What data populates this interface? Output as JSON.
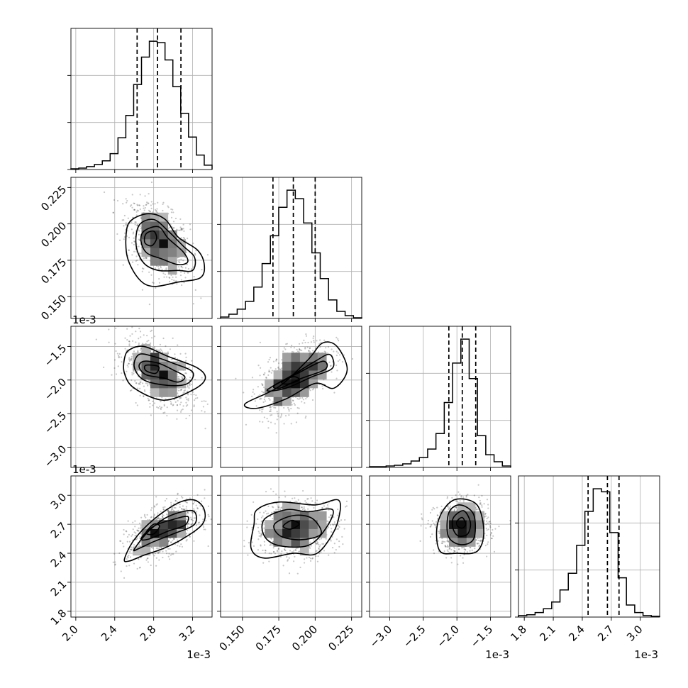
{
  "chart_data": {
    "type": "corner",
    "parameters": [
      {
        "range": [
          1.95,
          3.4
        ],
        "ticks": [
          2.0,
          2.4,
          2.8,
          3.2
        ],
        "tick_labels": [
          "2.0",
          "2.4",
          "2.8",
          "3.2"
        ],
        "offset_label": "1e-3",
        "quantiles": [
          2.63,
          2.84,
          3.08
        ]
      },
      {
        "range": [
          0.135,
          0.232
        ],
        "ticks": [
          0.15,
          0.175,
          0.2,
          0.225
        ],
        "tick_labels": [
          "0.150",
          "0.175",
          "0.200",
          "0.225"
        ],
        "offset_label": "",
        "quantiles": [
          0.171,
          0.185,
          0.2
        ]
      },
      {
        "range": [
          -3.3,
          -1.2
        ],
        "ticks": [
          -3.0,
          -2.5,
          -2.0,
          -1.5
        ],
        "tick_labels": [
          "−3.0",
          "−2.5",
          "−2.0",
          "−1.5"
        ],
        "offset_label": "1e-3",
        "quantiles": [
          -2.12,
          -1.92,
          -1.72
        ]
      },
      {
        "range": [
          1.74,
          3.2
        ],
        "ticks": [
          1.8,
          2.1,
          2.4,
          2.7,
          3.0
        ],
        "tick_labels": [
          "1.8",
          "2.1",
          "2.4",
          "2.7",
          "3.0"
        ],
        "offset_label": "1e-3",
        "quantiles": [
          2.46,
          2.66,
          2.78
        ]
      }
    ],
    "histograms": [
      {
        "counts": [
          1,
          2,
          4,
          7,
          12,
          22,
          44,
          75,
          118,
          156,
          178,
          176,
          152,
          115,
          78,
          45,
          20,
          6
        ]
      },
      {
        "counts": [
          2,
          6,
          13,
          24,
          44,
          77,
          116,
          156,
          180,
          168,
          134,
          92,
          56,
          26,
          10,
          4,
          1
        ]
      },
      {
        "counts": [
          1,
          1,
          2,
          3,
          5,
          9,
          14,
          26,
          48,
          92,
          148,
          182,
          126,
          45,
          18,
          8,
          2
        ]
      },
      {
        "counts": [
          2,
          3,
          6,
          11,
          20,
          36,
          58,
          95,
          140,
          170,
          166,
          112,
          52,
          16,
          6,
          2,
          1
        ]
      }
    ],
    "pairs": [
      {
        "x_param": 0,
        "y_param": 1,
        "mean": [
          2.85,
          0.188
        ],
        "sd": [
          0.16,
          0.013
        ],
        "corr": -0.45,
        "contours": [
          [
            [
              2.58,
              0.203
            ],
            [
              2.75,
              0.207
            ],
            [
              2.92,
              0.203
            ],
            [
              3.05,
              0.191
            ],
            [
              3.25,
              0.182
            ],
            [
              3.32,
              0.172
            ],
            [
              3.28,
              0.163
            ],
            [
              3.05,
              0.16
            ],
            [
              2.8,
              0.157
            ],
            [
              2.65,
              0.162
            ],
            [
              2.53,
              0.177
            ],
            [
              2.52,
              0.195
            ]
          ],
          [
            [
              2.65,
              0.199
            ],
            [
              2.8,
              0.203
            ],
            [
              2.95,
              0.195
            ],
            [
              3.1,
              0.185
            ],
            [
              3.22,
              0.177
            ],
            [
              3.2,
              0.168
            ],
            [
              3.05,
              0.168
            ],
            [
              2.85,
              0.168
            ],
            [
              2.7,
              0.173
            ],
            [
              2.62,
              0.185
            ]
          ],
          [
            [
              2.7,
              0.195
            ],
            [
              2.85,
              0.198
            ],
            [
              2.95,
              0.19
            ],
            [
              3.1,
              0.181
            ],
            [
              3.15,
              0.174
            ],
            [
              3.05,
              0.172
            ],
            [
              2.88,
              0.176
            ],
            [
              2.73,
              0.18
            ],
            [
              2.67,
              0.188
            ]
          ],
          [
            [
              2.72,
              0.193
            ],
            [
              2.8,
              0.195
            ],
            [
              2.83,
              0.19
            ],
            [
              2.78,
              0.185
            ],
            [
              2.71,
              0.187
            ]
          ]
        ]
      },
      {
        "x_param": 0,
        "y_param": 2,
        "mean": [
          2.85,
          -1.9
        ],
        "sd": [
          0.17,
          0.25
        ],
        "corr": -0.5,
        "contours": [
          [
            [
              2.55,
              -1.55
            ],
            [
              2.7,
              -1.5
            ],
            [
              2.95,
              -1.65
            ],
            [
              3.25,
              -1.82
            ],
            [
              3.33,
              -1.98
            ],
            [
              3.2,
              -2.15
            ],
            [
              2.9,
              -2.3
            ],
            [
              2.6,
              -2.12
            ],
            [
              2.5,
              -1.9
            ],
            [
              2.5,
              -1.68
            ]
          ],
          [
            [
              2.65,
              -1.62
            ],
            [
              2.8,
              -1.65
            ],
            [
              3.0,
              -1.75
            ],
            [
              3.2,
              -1.88
            ],
            [
              3.15,
              -2.05
            ],
            [
              2.95,
              -2.08
            ],
            [
              2.7,
              -2.0
            ],
            [
              2.6,
              -1.8
            ]
          ],
          [
            [
              2.7,
              -1.72
            ],
            [
              2.85,
              -1.75
            ],
            [
              3.0,
              -1.85
            ],
            [
              3.12,
              -1.95
            ],
            [
              3.05,
              -2.03
            ],
            [
              2.9,
              -1.97
            ],
            [
              2.72,
              -1.92
            ],
            [
              2.65,
              -1.8
            ]
          ],
          [
            [
              2.72,
              -1.78
            ],
            [
              2.85,
              -1.8
            ],
            [
              2.82,
              -1.9
            ],
            [
              2.72,
              -1.86
            ]
          ]
        ]
      },
      {
        "x_param": 1,
        "y_param": 2,
        "mean": [
          0.186,
          -1.95
        ],
        "sd": [
          0.012,
          0.27
        ],
        "corr": 0.55,
        "contours": [
          [
            [
              0.152,
              -2.35
            ],
            [
              0.175,
              -2.1
            ],
            [
              0.195,
              -1.7
            ],
            [
              0.205,
              -1.45
            ],
            [
              0.215,
              -1.5
            ],
            [
              0.222,
              -1.85
            ],
            [
              0.213,
              -2.12
            ],
            [
              0.2,
              -2.05
            ],
            [
              0.18,
              -2.28
            ],
            [
              0.16,
              -2.42
            ]
          ],
          [
            [
              0.167,
              -2.15
            ],
            [
              0.185,
              -1.92
            ],
            [
              0.2,
              -1.72
            ],
            [
              0.21,
              -1.62
            ],
            [
              0.212,
              -1.82
            ],
            [
              0.198,
              -1.95
            ],
            [
              0.18,
              -2.12
            ]
          ],
          [
            [
              0.172,
              -2.08
            ],
            [
              0.188,
              -1.9
            ],
            [
              0.205,
              -1.72
            ],
            [
              0.207,
              -1.84
            ],
            [
              0.19,
              -1.98
            ],
            [
              0.176,
              -2.12
            ]
          ],
          [
            [
              0.177,
              -2.03
            ],
            [
              0.185,
              -1.95
            ],
            [
              0.189,
              -2.0
            ],
            [
              0.181,
              -2.06
            ]
          ]
        ]
      },
      {
        "x_param": 0,
        "y_param": 3,
        "mean": [
          2.9,
          2.63
        ],
        "sd": [
          0.18,
          0.14
        ],
        "corr": 0.55,
        "contours": [
          [
            [
              2.5,
              2.34
            ],
            [
              2.6,
              2.54
            ],
            [
              2.8,
              2.75
            ],
            [
              3.05,
              2.92
            ],
            [
              3.22,
              2.95
            ],
            [
              3.32,
              2.85
            ],
            [
              3.3,
              2.7
            ],
            [
              3.1,
              2.55
            ],
            [
              2.9,
              2.45
            ],
            [
              2.7,
              2.38
            ],
            [
              2.55,
              2.32
            ]
          ],
          [
            [
              2.6,
              2.44
            ],
            [
              2.75,
              2.63
            ],
            [
              2.95,
              2.78
            ],
            [
              3.2,
              2.84
            ],
            [
              3.22,
              2.7
            ],
            [
              3.0,
              2.6
            ],
            [
              2.8,
              2.52
            ],
            [
              2.65,
              2.45
            ]
          ],
          [
            [
              2.67,
              2.55
            ],
            [
              2.8,
              2.68
            ],
            [
              3.0,
              2.75
            ],
            [
              3.15,
              2.78
            ],
            [
              3.12,
              2.69
            ],
            [
              2.95,
              2.63
            ],
            [
              2.76,
              2.55
            ]
          ],
          [
            [
              2.72,
              2.61
            ],
            [
              2.8,
              2.7
            ],
            [
              2.86,
              2.68
            ],
            [
              2.8,
              2.6
            ]
          ]
        ]
      },
      {
        "x_param": 1,
        "y_param": 3,
        "mean": [
          0.187,
          2.66
        ],
        "sd": [
          0.014,
          0.14
        ],
        "corr": 0.1,
        "contours": [
          [
            [
              0.16,
              2.85
            ],
            [
              0.175,
              2.93
            ],
            [
              0.2,
              2.9
            ],
            [
              0.216,
              2.95
            ],
            [
              0.216,
              2.75
            ],
            [
              0.21,
              2.55
            ],
            [
              0.2,
              2.39
            ],
            [
              0.185,
              2.4
            ],
            [
              0.165,
              2.35
            ],
            [
              0.156,
              2.45
            ],
            [
              0.158,
              2.7
            ]
          ],
          [
            [
              0.165,
              2.75
            ],
            [
              0.18,
              2.85
            ],
            [
              0.195,
              2.83
            ],
            [
              0.212,
              2.85
            ],
            [
              0.207,
              2.65
            ],
            [
              0.195,
              2.48
            ],
            [
              0.175,
              2.48
            ],
            [
              0.165,
              2.58
            ]
          ],
          [
            [
              0.172,
              2.7
            ],
            [
              0.185,
              2.79
            ],
            [
              0.198,
              2.76
            ],
            [
              0.204,
              2.6
            ],
            [
              0.19,
              2.54
            ],
            [
              0.176,
              2.58
            ]
          ],
          [
            [
              0.178,
              2.68
            ],
            [
              0.184,
              2.74
            ],
            [
              0.189,
              2.7
            ],
            [
              0.183,
              2.65
            ]
          ]
        ]
      },
      {
        "x_param": 2,
        "y_param": 3,
        "mean": [
          -1.92,
          2.67
        ],
        "sd": [
          0.2,
          0.13
        ],
        "corr": 0.05,
        "contours": [
          [
            [
              -2.2,
              2.85
            ],
            [
              -2.0,
              2.96
            ],
            [
              -1.7,
              2.9
            ],
            [
              -1.6,
              2.62
            ],
            [
              -1.7,
              2.42
            ],
            [
              -2.0,
              2.4
            ],
            [
              -2.25,
              2.42
            ],
            [
              -2.3,
              2.65
            ]
          ],
          [
            [
              -2.12,
              2.82
            ],
            [
              -1.95,
              2.9
            ],
            [
              -1.75,
              2.8
            ],
            [
              -1.75,
              2.55
            ],
            [
              -1.95,
              2.49
            ],
            [
              -2.13,
              2.58
            ]
          ],
          [
            [
              -2.05,
              2.77
            ],
            [
              -1.9,
              2.84
            ],
            [
              -1.8,
              2.72
            ],
            [
              -1.84,
              2.6
            ],
            [
              -1.98,
              2.58
            ],
            [
              -2.06,
              2.66
            ]
          ],
          [
            [
              -2.0,
              2.73
            ],
            [
              -1.92,
              2.77
            ],
            [
              -1.87,
              2.7
            ],
            [
              -1.92,
              2.66
            ],
            [
              -1.99,
              2.68
            ]
          ]
        ]
      }
    ]
  }
}
